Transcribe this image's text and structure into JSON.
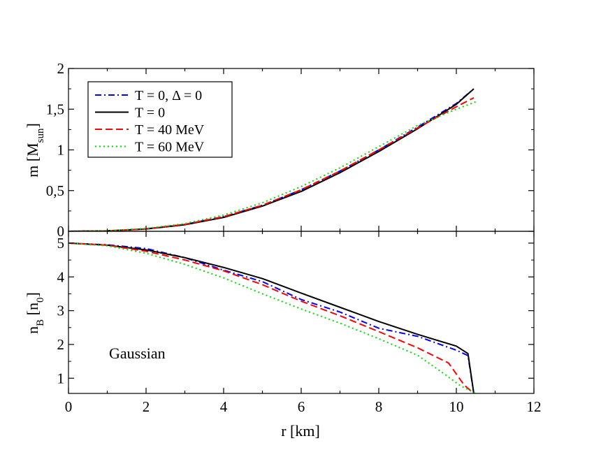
{
  "chart_data": [
    {
      "type": "line",
      "panel": "top",
      "ylabel_main": "m [M",
      "ylabel_sub": "sun",
      "ylabel_end": "]",
      "ylim": [
        0,
        2
      ],
      "yticks": [
        0,
        0.5,
        1,
        1.5,
        2
      ],
      "ytick_labels": [
        "0",
        "0,5",
        "1",
        "1,5",
        "2"
      ],
      "xlim": [
        0,
        12
      ],
      "legend": {
        "position": "top-left",
        "entries": [
          {
            "text": "T = 0, Δ = 0",
            "series": "T0_D0"
          },
          {
            "text": "T = 0",
            "series": "T0"
          },
          {
            "text": "T = 40 MeV",
            "series": "T40"
          },
          {
            "text": "T = 60 MeV",
            "series": "T60"
          }
        ]
      },
      "series": [
        {
          "id": "T0_D0",
          "name": "T = 0, Δ = 0",
          "color": "#0000ff",
          "dash": "dashdot",
          "x": [
            0,
            1,
            2,
            3,
            4,
            5,
            6,
            7,
            8,
            9,
            10,
            10.45
          ],
          "y": [
            0,
            0.005,
            0.03,
            0.085,
            0.18,
            0.32,
            0.51,
            0.74,
            1.0,
            1.28,
            1.57,
            1.75
          ]
        },
        {
          "id": "T0",
          "name": "T = 0",
          "color": "#000000",
          "dash": "solid",
          "x": [
            0,
            1,
            2,
            3,
            4,
            5,
            6,
            7,
            8,
            9,
            10,
            10.45
          ],
          "y": [
            0,
            0.005,
            0.028,
            0.08,
            0.17,
            0.31,
            0.49,
            0.72,
            0.98,
            1.26,
            1.56,
            1.75
          ]
        },
        {
          "id": "T40",
          "name": "T = 40 MeV",
          "color": "#ff0000",
          "dash": "dashed",
          "x": [
            0,
            1,
            2,
            3,
            4,
            5,
            6,
            7,
            8,
            9,
            10,
            10.45
          ],
          "y": [
            0,
            0.005,
            0.03,
            0.085,
            0.18,
            0.32,
            0.51,
            0.74,
            1.0,
            1.27,
            1.53,
            1.64
          ]
        },
        {
          "id": "T60",
          "name": "T = 60 MeV",
          "color": "#00dd00",
          "dash": "dotted",
          "x": [
            0,
            1,
            2,
            3,
            4,
            5,
            6,
            7,
            8,
            9,
            10,
            10.5
          ],
          "y": [
            0,
            0.006,
            0.035,
            0.095,
            0.2,
            0.35,
            0.55,
            0.78,
            1.04,
            1.3,
            1.5,
            1.59
          ]
        }
      ]
    },
    {
      "type": "line",
      "panel": "bottom",
      "ylabel_main": "n",
      "ylabel_sub": "B",
      "ylabel_mid": " [n",
      "ylabel_sub2": "0",
      "ylabel_end": "]",
      "ylim": [
        0.55,
        5.35
      ],
      "yticks": [
        1,
        2,
        3,
        4,
        5
      ],
      "ytick_labels": [
        "1",
        "2",
        "3",
        "4",
        "5"
      ],
      "xlabel": "r [km]",
      "xlim": [
        0,
        12
      ],
      "xticks": [
        0,
        2,
        4,
        6,
        8,
        10,
        12
      ],
      "xtick_labels": [
        "0",
        "2",
        "4",
        "6",
        "8",
        "10",
        "12"
      ],
      "annotation": "Gaussian",
      "series": [
        {
          "id": "T0_D0",
          "name": "T = 0, Δ = 0",
          "color": "#0000ff",
          "dash": "dashdot",
          "x": [
            0,
            1,
            2,
            3,
            4,
            5,
            6,
            7,
            8,
            9,
            10,
            10.3,
            10.45
          ],
          "y": [
            5.0,
            4.95,
            4.84,
            4.57,
            4.2,
            3.86,
            3.33,
            2.96,
            2.48,
            2.24,
            1.83,
            1.67,
            0.55
          ]
        },
        {
          "id": "T0",
          "name": "T = 0",
          "color": "#000000",
          "dash": "solid",
          "x": [
            0,
            1,
            2,
            3,
            4,
            5,
            6,
            7,
            8,
            9,
            10,
            10.3,
            10.45
          ],
          "y": [
            5.0,
            4.94,
            4.8,
            4.57,
            4.28,
            3.95,
            3.52,
            3.1,
            2.68,
            2.3,
            1.95,
            1.73,
            0.55
          ]
        },
        {
          "id": "T40",
          "name": "T = 40 MeV",
          "color": "#ff0000",
          "dash": "dashed",
          "x": [
            0,
            1,
            2,
            3,
            4,
            5,
            6,
            7,
            8,
            9,
            9.8,
            10.2,
            10.45
          ],
          "y": [
            5.0,
            4.94,
            4.76,
            4.5,
            4.18,
            3.77,
            3.28,
            2.85,
            2.38,
            1.9,
            1.45,
            0.8,
            0.55
          ]
        },
        {
          "id": "T60",
          "name": "T = 60 MeV",
          "color": "#00dd00",
          "dash": "dotted",
          "x": [
            0,
            1,
            2,
            3,
            4,
            5,
            6,
            7,
            8,
            9,
            9.6,
            10.1,
            10.5
          ],
          "y": [
            5.0,
            4.92,
            4.7,
            4.37,
            3.97,
            3.5,
            3.05,
            2.63,
            2.17,
            1.68,
            1.2,
            0.78,
            0.55
          ]
        }
      ]
    }
  ]
}
